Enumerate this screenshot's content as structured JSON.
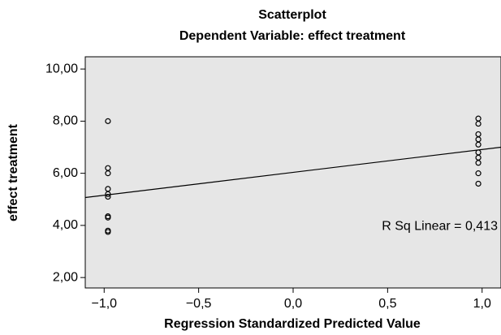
{
  "chart_data": {
    "type": "scatter",
    "title": "Scatterplot",
    "subtitle": "Dependent Variable: effect treatment",
    "x_label": "Regression Standardized Predicted Value",
    "y_label": "effect treatment",
    "annotation": "R Sq Linear = 0,413",
    "series": [
      {
        "x": [
          -0.98,
          -0.98,
          -0.98,
          -0.98,
          -0.98,
          -0.98,
          -0.98,
          -0.98,
          -0.98,
          -0.98,
          0.98,
          0.98,
          0.98,
          0.98,
          0.98,
          0.98,
          0.98,
          0.98,
          0.98,
          0.98
        ],
        "values": [
          8.0,
          6.2,
          6.0,
          5.4,
          5.2,
          5.1,
          4.35,
          4.3,
          3.8,
          3.75,
          8.1,
          7.9,
          7.5,
          7.3,
          7.1,
          6.8,
          6.6,
          6.4,
          6.0,
          5.6
        ],
        "color": "#000000"
      }
    ],
    "fit_line": {
      "x": [
        -1.1,
        1.1
      ],
      "y": [
        5.07,
        7.0
      ],
      "color": "#000000"
    },
    "xlim": [
      -1.1,
      1.1
    ],
    "ylim": [
      1.6,
      10.47
    ],
    "xticks": [
      {
        "value": -1,
        "label": "−1,0"
      },
      {
        "value": -0.5,
        "label": "−0,5"
      },
      {
        "value": 0,
        "label": "0,0"
      },
      {
        "value": 0.5,
        "label": "0,5"
      },
      {
        "value": 1,
        "label": "1,0"
      }
    ],
    "yticks": [
      {
        "value": 2,
        "label": "2,00"
      },
      {
        "value": 4,
        "label": "4,00"
      },
      {
        "value": 6,
        "label": "6,00"
      },
      {
        "value": 8,
        "label": "8,00"
      },
      {
        "value": 10,
        "label": "10,00"
      }
    ],
    "background": "#e6e6e6"
  }
}
